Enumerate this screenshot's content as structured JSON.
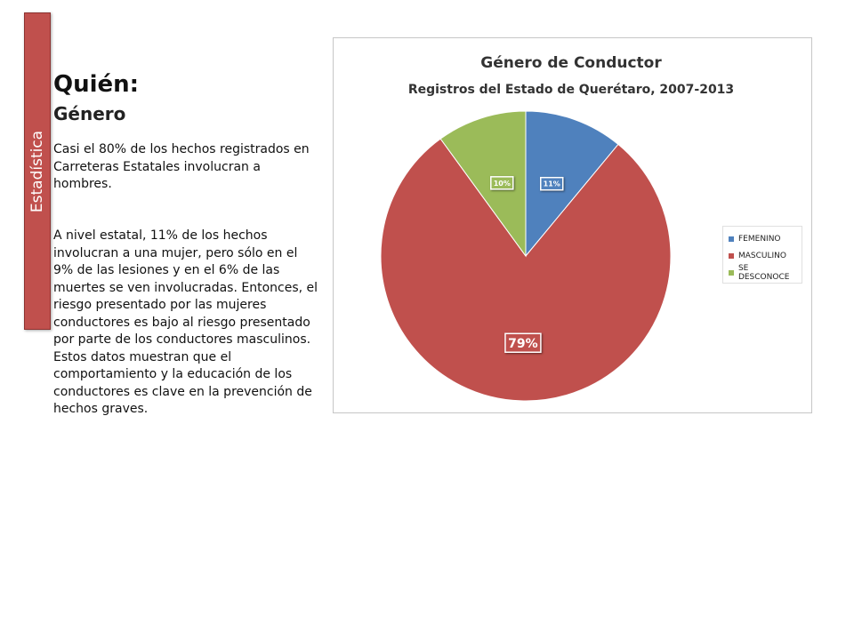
{
  "sidebar": {
    "label": "Estadística"
  },
  "heading": "Quién:",
  "subheading": "Género",
  "paragraphs": [
    "Casi el 80% de los hechos registrados en Carreteras Estatales involucran a hombres.",
    "A nivel estatal, 11% de los hechos involucran a una mujer, pero sólo en el 9% de las lesiones y en el 6% de las muertes se ven involucradas. Entonces, el riesgo presentado por las mujeres conductores es bajo al riesgo presentado por parte de los conductores masculinos.  Estos datos muestran que el comportamiento y la educación de los conductores es clave en la prevención de hechos graves."
  ],
  "chart_data": {
    "type": "pie",
    "title": "Género de Conductor",
    "subtitle": "Registros del Estado de Querétaro, 2007-2013",
    "legend_position": "right",
    "slices": [
      {
        "label": "FEMENINO",
        "value": 11,
        "display": "11%",
        "color": "#4f81bd"
      },
      {
        "label": "MASCULINO",
        "value": 79,
        "display": "79%",
        "color": "#c0504d"
      },
      {
        "label": "SE DESCONOCE",
        "value": 10,
        "display": "10%",
        "color": "#9bbb59"
      }
    ]
  }
}
